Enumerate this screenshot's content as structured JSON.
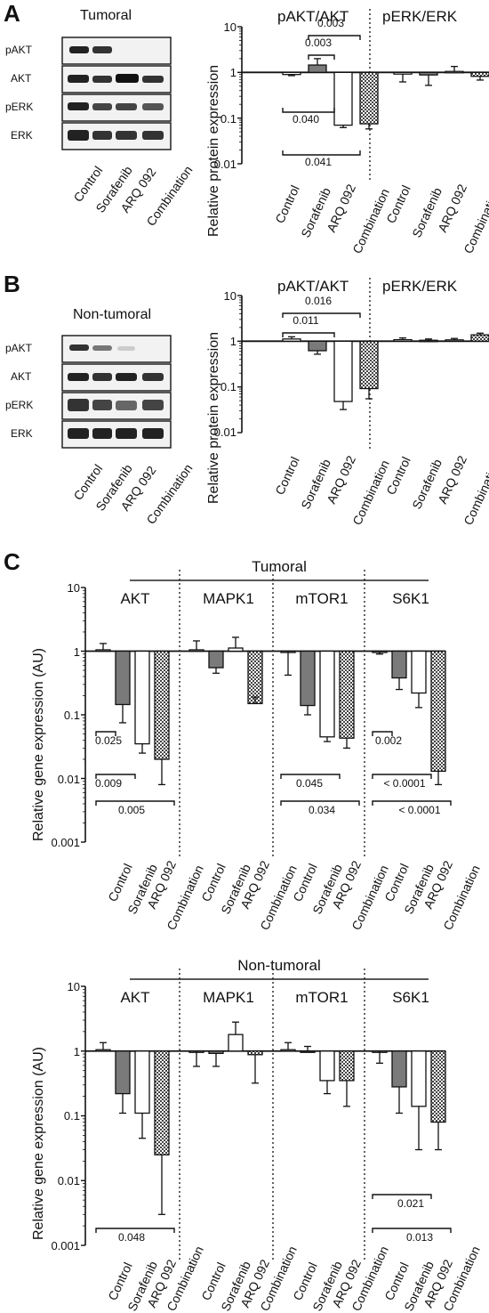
{
  "panel_labels": {
    "a": "A",
    "b": "B",
    "c": "C"
  },
  "blots": {
    "A": {
      "title": "Tumoral",
      "rows": [
        "pAKT",
        "AKT",
        "pERK",
        "ERK"
      ],
      "lanes": [
        "Control",
        "Sorafenib",
        "ARQ 092",
        "Combination"
      ]
    },
    "B": {
      "title": "Non-tumoral",
      "rows": [
        "pAKT",
        "AKT",
        "pERK",
        "ERK"
      ],
      "lanes": [
        "Control",
        "Sorafenib",
        "ARQ 092",
        "Combination"
      ]
    }
  },
  "colors": {
    "control": "#ffffff",
    "sorafenib": "#7a7a7a",
    "arq092": "#ffffff",
    "combination": "checkered"
  },
  "chart_data": [
    {
      "id": "A-protein",
      "type": "bar",
      "log_scale": true,
      "ylabel": "Relative protein expression",
      "yticks": [
        "10",
        "1",
        "0.1",
        "0.01"
      ],
      "ylim": [
        0.01,
        10
      ],
      "categories": [
        "Control",
        "Sorafenib",
        "ARQ 092",
        "Combination"
      ],
      "groups": [
        {
          "title": "pAKT/AKT",
          "values": [
            0.9,
            1.45,
            0.07,
            0.075
          ],
          "errors": [
            0.85,
            2.0,
            0.062,
            0.058
          ]
        },
        {
          "title": "pERK/ERK",
          "values": [
            0.92,
            0.88,
            1.05,
            0.82
          ],
          "errors": [
            0.62,
            0.52,
            1.35,
            0.68
          ]
        }
      ],
      "annotations": [
        "0.003",
        "0.003",
        "0.040",
        "0.041"
      ]
    },
    {
      "id": "B-protein",
      "type": "bar",
      "log_scale": true,
      "ylabel": "Relative protein expression",
      "yticks": [
        "10",
        "1",
        "0.1",
        "0.01"
      ],
      "ylim": [
        0.01,
        10
      ],
      "categories": [
        "Control",
        "Sorafenib",
        "ARQ 092",
        "Combination"
      ],
      "groups": [
        {
          "title": "pAKT/AKT",
          "values": [
            1.12,
            0.62,
            0.048,
            0.092
          ],
          "errors": [
            1.25,
            0.52,
            0.032,
            0.055
          ]
        },
        {
          "title": "pERK/ERK",
          "values": [
            1.08,
            1.05,
            1.07,
            1.38
          ],
          "errors": [
            1.18,
            1.12,
            1.15,
            1.5
          ]
        }
      ],
      "annotations": [
        "0.011",
        "0.016"
      ]
    },
    {
      "id": "C-tumoral",
      "type": "bar",
      "log_scale": true,
      "title": "Tumoral",
      "ylabel": "Relative gene expression (AU)",
      "yticks": [
        "10",
        "1",
        "0.1",
        "0.01",
        "0.001"
      ],
      "ylim": [
        0.001,
        10
      ],
      "categories": [
        "Control",
        "Sorafenib",
        "ARQ 092",
        "Combination"
      ],
      "groups": [
        {
          "title": "AKT",
          "values": [
            1.05,
            0.145,
            0.035,
            0.02
          ],
          "errors": [
            1.32,
            0.075,
            0.025,
            0.008
          ]
        },
        {
          "title": "MAPK1",
          "values": [
            1.05,
            0.55,
            1.12,
            0.15
          ],
          "errors": [
            1.45,
            0.45,
            1.65,
            0.19
          ]
        },
        {
          "title": "mTOR1",
          "values": [
            1.0,
            0.14,
            0.045,
            0.043
          ],
          "errors": [
            0.42,
            0.1,
            0.038,
            0.03
          ]
        },
        {
          "title": "S6K1",
          "values": [
            1.0,
            0.38,
            0.22,
            0.013
          ],
          "errors": [
            0.9,
            0.25,
            0.13,
            0.008
          ]
        }
      ],
      "annotations": [
        "0.025",
        "0.009",
        "0.005",
        "0.045",
        "0.034",
        "0.002",
        "< 0.0001",
        "< 0.0001"
      ]
    },
    {
      "id": "C-nontumoral",
      "type": "bar",
      "log_scale": true,
      "title": "Non-tumoral",
      "ylabel": "Relative gene expression (AU)",
      "yticks": [
        "10",
        "1",
        "0.1",
        "0.01",
        "0.001"
      ],
      "ylim": [
        0.001,
        10
      ],
      "categories": [
        "Control",
        "Sorafenib",
        "ARQ 092",
        "Combination"
      ],
      "groups": [
        {
          "title": "AKT",
          "values": [
            1.05,
            0.22,
            0.11,
            0.025
          ],
          "errors": [
            1.35,
            0.11,
            0.045,
            0.003
          ]
        },
        {
          "title": "MAPK1",
          "values": [
            1.0,
            0.92,
            1.8,
            0.88
          ],
          "errors": [
            0.58,
            0.58,
            2.8,
            0.32
          ]
        },
        {
          "title": "mTOR1",
          "values": [
            1.05,
            1.0,
            0.35,
            0.35
          ],
          "errors": [
            1.35,
            1.18,
            0.22,
            0.14
          ]
        },
        {
          "title": "S6K1",
          "values": [
            1.0,
            0.28,
            0.14,
            0.08
          ],
          "errors": [
            0.65,
            0.11,
            0.03,
            0.03
          ]
        }
      ],
      "annotations": [
        "0.048",
        "0.021",
        "0.013"
      ]
    }
  ]
}
